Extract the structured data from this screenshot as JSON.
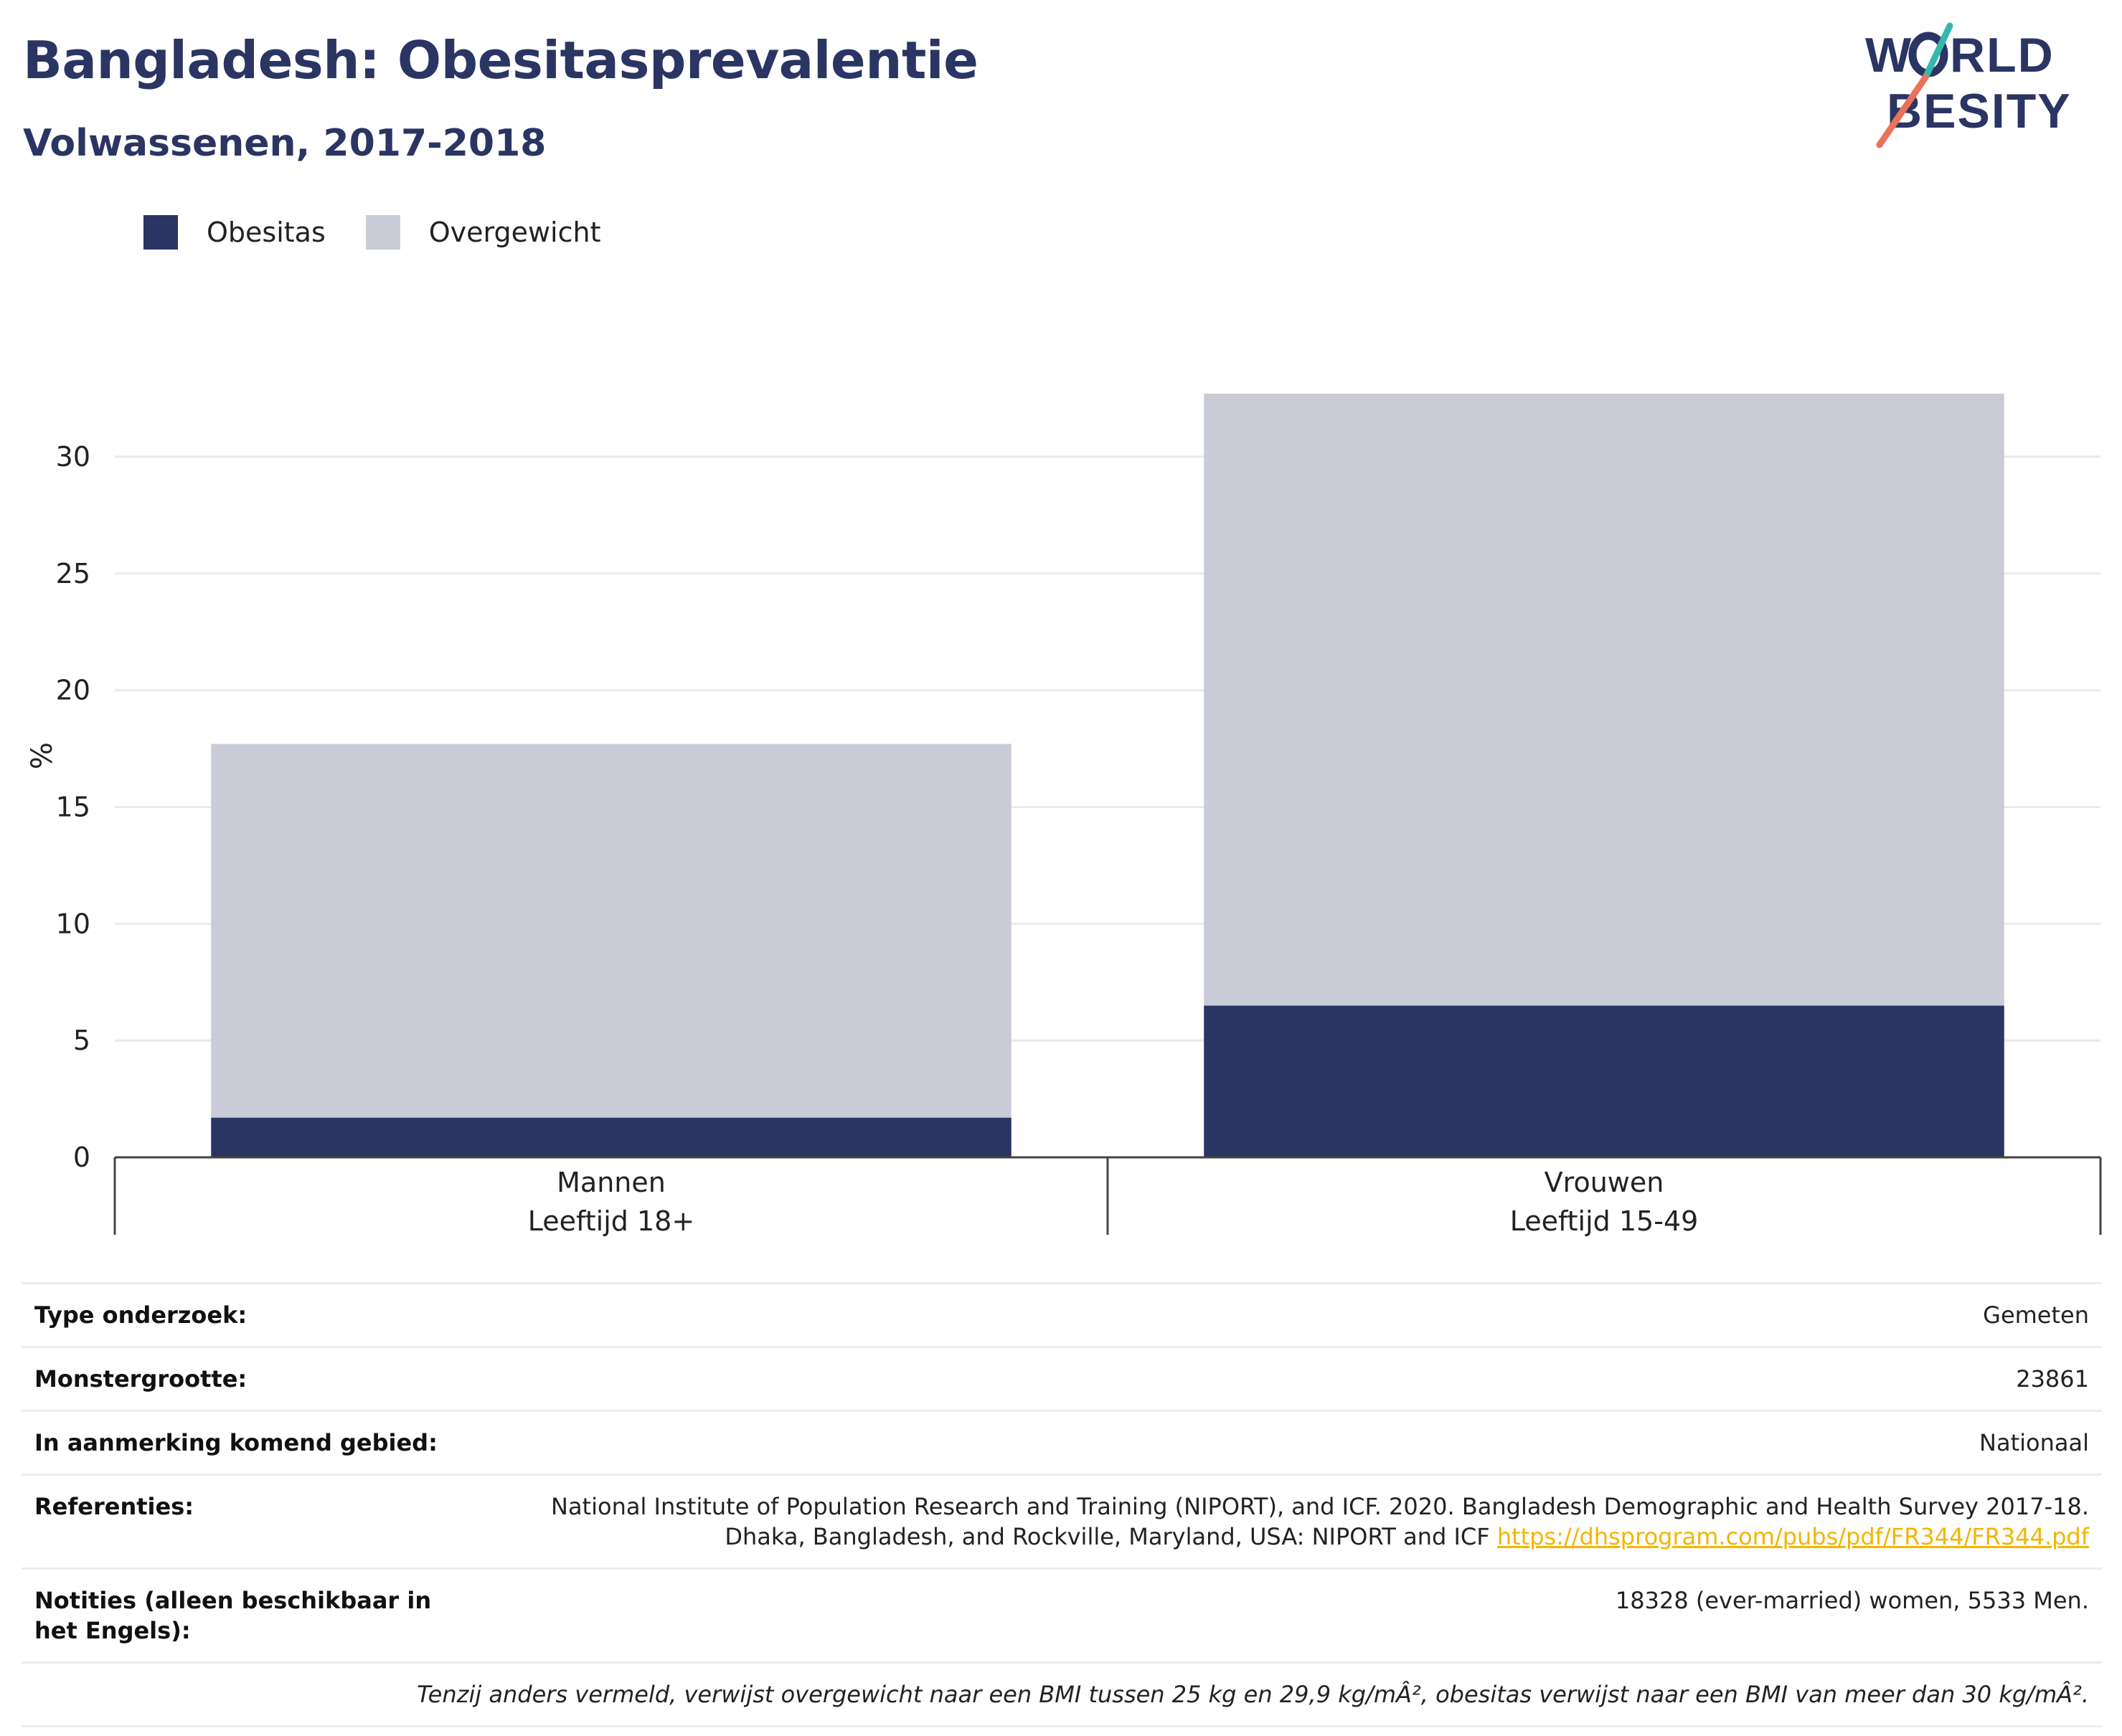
{
  "title": "Bangladesh: Obesitasprevalentie",
  "subtitle": "Volwassenen, 2017-2018",
  "logo": {
    "line1": "WORLD",
    "line2": "OBESITY"
  },
  "legend": [
    {
      "label": "Obesitas",
      "color": "#2b3563"
    },
    {
      "label": "Overgewicht",
      "color": "#c9cbd7"
    }
  ],
  "chart_data": {
    "type": "bar",
    "stacked": true,
    "categories": [
      "Mannen",
      "Vrouwen"
    ],
    "category_sublabels": [
      "Leeftijd 18+",
      "Leeftijd 15-49"
    ],
    "series": [
      {
        "name": "Obesitas",
        "values": [
          1.7,
          6.5
        ],
        "color": "#2b3563"
      },
      {
        "name": "Overgewicht",
        "values": [
          16.0,
          26.2
        ],
        "color": "#c9cbd7"
      }
    ],
    "ylabel": "%",
    "ylim": [
      0,
      32.7
    ],
    "yticks": [
      0,
      5,
      10,
      15,
      20,
      25,
      30
    ],
    "grid": true,
    "legend_position": "top-left"
  },
  "meta": {
    "survey_type": {
      "label": "Type onderzoek:",
      "value": "Gemeten"
    },
    "sample_size": {
      "label": "Monstergrootte:",
      "value": "23861"
    },
    "area": {
      "label": "In aanmerking komend gebied:",
      "value": "Nationaal"
    },
    "references": {
      "label": "Referenties:",
      "text_line1": "National Institute of Population Research and Training (NIPORT), and ICF. 2020. Bangladesh Demographic and Health Survey 2017-18.",
      "text_line2": "Dhaka, Bangladesh, and Rockville, Maryland, USA: NIPORT and ICF",
      "link": "https://dhsprogram.com/pubs/pdf/FR344/FR344.pdf"
    },
    "notes": {
      "label": "Notities (alleen beschikbaar in het Engels):",
      "value": "18328 (ever-married) women, 5533 Men."
    },
    "footnote": "Tenzij anders vermeld, verwijst overgewicht naar een BMI tussen 25 kg en 29,9 kg/mÂ², obesitas verwijst naar een BMI van meer dan 30 kg/mÂ²."
  }
}
